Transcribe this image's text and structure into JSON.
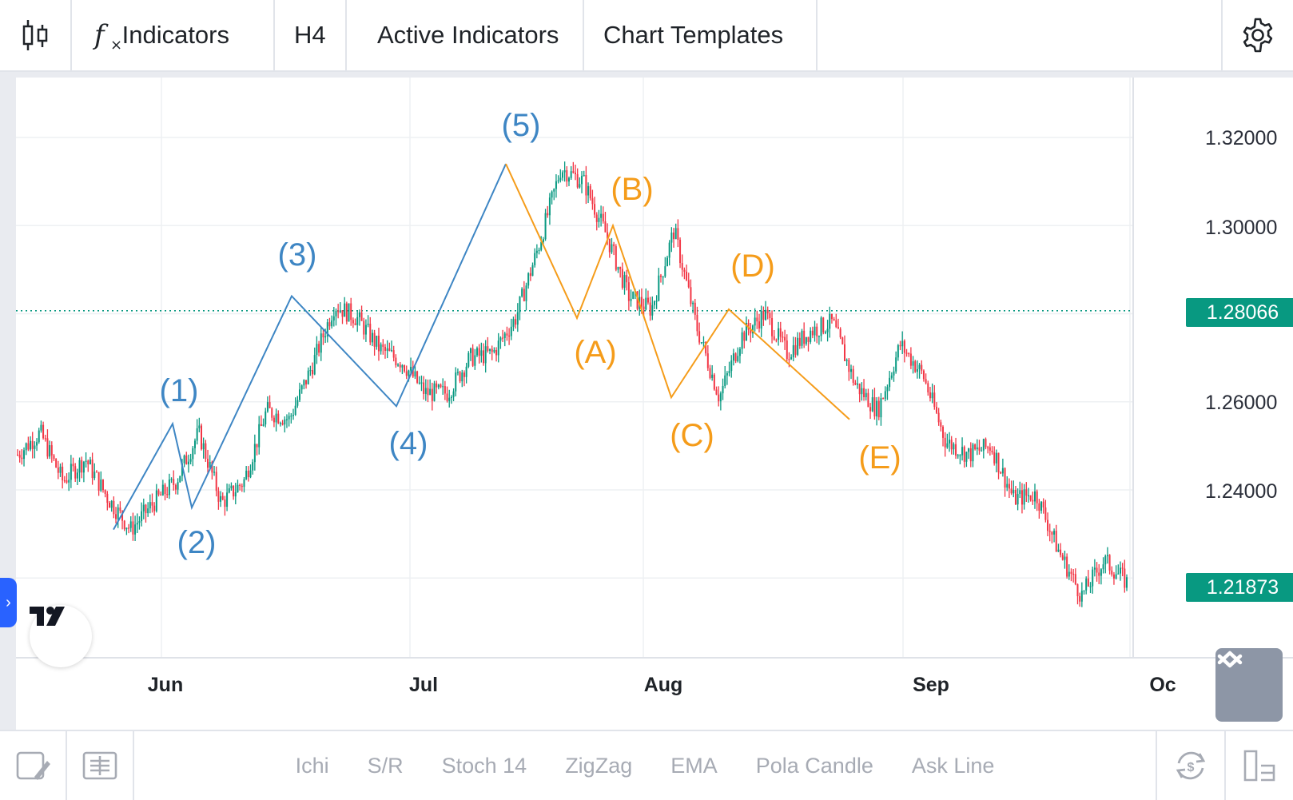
{
  "toolbar": {
    "indicators_label": "Indicators",
    "timeframe_label": "H4",
    "active_indicators_label": "Active Indicators",
    "chart_templates_label": "Chart Templates",
    "icons": [
      "candlestick-icon",
      "function-icon",
      "gear-icon"
    ]
  },
  "price_axis": {
    "labels": [
      "1.32000",
      "1.30000",
      "1.26000",
      "1.24000"
    ],
    "current_price_tag": "1.28066",
    "last_price_tag": "1.21873",
    "tag_color": "#089981"
  },
  "time_axis": {
    "labels": [
      "Jun",
      "Jul",
      "Aug",
      "Sep",
      "Oc"
    ]
  },
  "waves": {
    "impulse_labels": [
      "(1)",
      "(2)",
      "(3)",
      "(4)",
      "(5)"
    ],
    "corrective_labels": [
      "(A)",
      "(B)",
      "(C)",
      "(D)",
      "(E)"
    ],
    "impulse_color": "#3e86c4",
    "corrective_color": "#f59c1a"
  },
  "bottom_bar": {
    "tabs": [
      "Ichi",
      "S/R",
      "Stoch 14",
      "ZigZag",
      "EMA",
      "Pola Candle",
      "Ask Line"
    ],
    "icons": [
      "drawing-icon",
      "template-icon",
      "sync-icon",
      "layout-icon"
    ]
  },
  "colors": {
    "up_candle": "#089981",
    "down_candle": "#f23645"
  },
  "chart_data": {
    "type": "candlestick",
    "ylim": [
      1.205,
      1.335
    ],
    "x_ticks": [
      "Jun",
      "Jul",
      "Aug",
      "Sep",
      "Oc"
    ],
    "y_ticks": [
      1.24,
      1.26,
      1.3,
      1.32
    ],
    "current_price": 1.28066,
    "last_price": 1.21873,
    "price_path": [
      {
        "t": "May 12",
        "price": 1.248
      },
      {
        "t": "May 14",
        "price": 1.253
      },
      {
        "t": "May 17",
        "price": 1.242
      },
      {
        "t": "May 20",
        "price": 1.247
      },
      {
        "t": "May 23",
        "price": 1.238
      },
      {
        "t": "May 25",
        "price": 1.231
      },
      {
        "t": "May 28",
        "price": 1.237
      },
      {
        "t": "May 31",
        "price": 1.242
      },
      {
        "t": "Jun 2",
        "price": 1.253
      },
      {
        "t": "Jun 4",
        "price": 1.237
      },
      {
        "t": "Jun 6",
        "price": 1.242
      },
      {
        "t": "Jun 9",
        "price": 1.258
      },
      {
        "t": "Jun 11",
        "price": 1.256
      },
      {
        "t": "Jun 13",
        "price": 1.268
      },
      {
        "t": "Jun 16",
        "price": 1.282
      },
      {
        "t": "Jun 18",
        "price": 1.279
      },
      {
        "t": "Jun 21",
        "price": 1.272
      },
      {
        "t": "Jun 24",
        "price": 1.269
      },
      {
        "t": "Jun 27",
        "price": 1.262
      },
      {
        "t": "Jun 29",
        "price": 1.262
      },
      {
        "t": "Jul 1",
        "price": 1.27
      },
      {
        "t": "Jul 3",
        "price": 1.271
      },
      {
        "t": "Jul 6",
        "price": 1.279
      },
      {
        "t": "Jul 9",
        "price": 1.295
      },
      {
        "t": "Jul 12",
        "price": 1.313
      },
      {
        "t": "Jul 15",
        "price": 1.31
      },
      {
        "t": "Jul 18",
        "price": 1.298
      },
      {
        "t": "Jul 21",
        "price": 1.284
      },
      {
        "t": "Jul 24",
        "price": 1.281
      },
      {
        "t": "Jul 28",
        "price": 1.299
      },
      {
        "t": "Jul 31",
        "price": 1.277
      },
      {
        "t": "Aug 3",
        "price": 1.261
      },
      {
        "t": "Aug 6",
        "price": 1.275
      },
      {
        "t": "Aug 9",
        "price": 1.28
      },
      {
        "t": "Aug 13",
        "price": 1.271
      },
      {
        "t": "Aug 16",
        "price": 1.276
      },
      {
        "t": "Aug 20",
        "price": 1.278
      },
      {
        "t": "Aug 23",
        "price": 1.264
      },
      {
        "t": "Aug 26",
        "price": 1.258
      },
      {
        "t": "Aug 29",
        "price": 1.273
      },
      {
        "t": "Sep 1",
        "price": 1.266
      },
      {
        "t": "Sep 4",
        "price": 1.251
      },
      {
        "t": "Sep 8",
        "price": 1.248
      },
      {
        "t": "Sep 11",
        "price": 1.25
      },
      {
        "t": "Sep 15",
        "price": 1.238
      },
      {
        "t": "Sep 18",
        "price": 1.239
      },
      {
        "t": "Sep 21",
        "price": 1.226
      },
      {
        "t": "Sep 25",
        "price": 1.216
      },
      {
        "t": "Sep 27",
        "price": 1.224
      },
      {
        "t": "Sep 28",
        "price": 1.219
      }
    ],
    "impulse_waves": [
      {
        "label": "(1)",
        "price": 1.255
      },
      {
        "label": "(2)",
        "price": 1.236
      },
      {
        "label": "(3)",
        "price": 1.284
      },
      {
        "label": "(4)",
        "price": 1.259
      },
      {
        "label": "(5)",
        "price": 1.314
      }
    ],
    "corrective_waves": [
      {
        "label": "(A)",
        "price": 1.279
      },
      {
        "label": "(B)",
        "price": 1.3
      },
      {
        "label": "(C)",
        "price": 1.261
      },
      {
        "label": "(D)",
        "price": 1.281
      },
      {
        "label": "(E)",
        "price": 1.256
      }
    ]
  }
}
